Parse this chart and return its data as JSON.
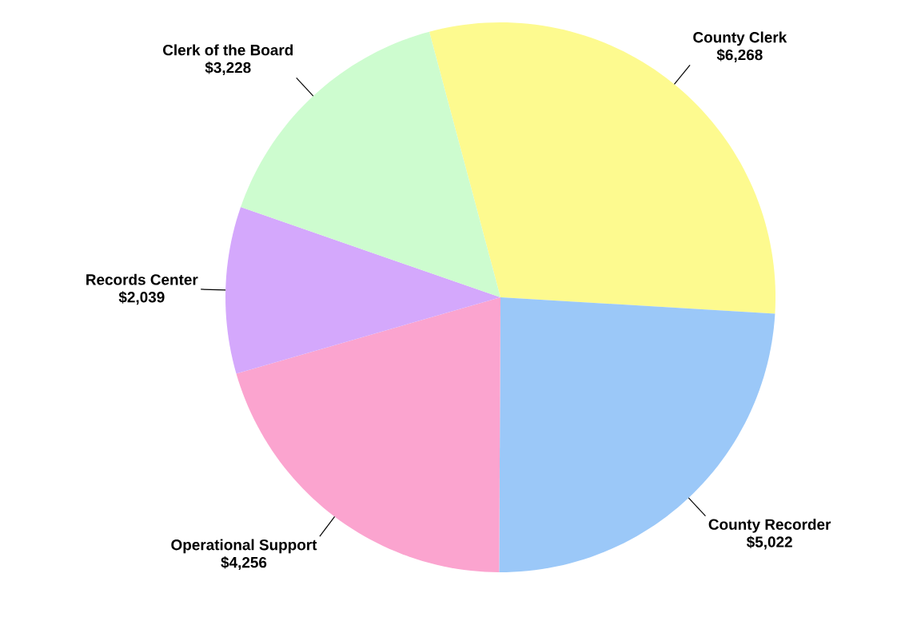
{
  "chart_data": {
    "type": "pie",
    "categories": [
      "County Clerk",
      "County Recorder",
      "Operational Support",
      "Records Center",
      "Clerk of the Board"
    ],
    "values": [
      6268,
      5022,
      4256,
      2039,
      3228
    ],
    "value_labels": [
      "$6,268",
      "$5,022",
      "$4,256",
      "$2,039",
      "$3,228"
    ],
    "colors": [
      "#fdfa8f",
      "#9bc8f8",
      "#fba4cf",
      "#d4a8fc",
      "#cdfccf"
    ]
  }
}
